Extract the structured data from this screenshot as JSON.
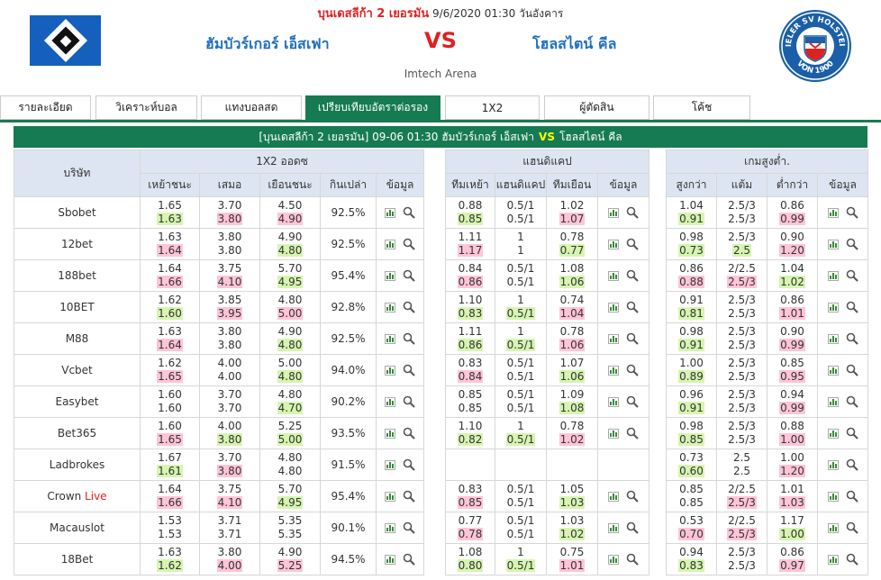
{
  "header": {
    "league": "บุนเดสลีก้า 2 เยอรมัน",
    "datetime": "9/6/2020 01:30",
    "weekday": "วันอังคาร",
    "home_team": "ฮัมบัวร์เกอร์ เอ็สเฟา",
    "vs": "VS",
    "away_team": "โฮลสไตน์ คีล",
    "venue": "Imtech Arena",
    "away_logo_text_top": "KIELER SV HOLSTEIN",
    "away_logo_text_bottom": "VON 1900"
  },
  "tabs": [
    {
      "label": "รายละเอียด",
      "active": false
    },
    {
      "label": "วิเคราะห์บอล",
      "active": false
    },
    {
      "label": "แทงบอลสด",
      "active": false
    },
    {
      "label": "เปรียบเทียบอัตราต่อรอง",
      "active": true
    },
    {
      "label": "1X2",
      "active": false
    },
    {
      "label": "ผู้ตัดสิน",
      "active": false
    },
    {
      "label": "โค้ช",
      "active": false
    }
  ],
  "title_bar": {
    "prefix": "[บุนเดสลีก้า 2 เยอรมัน]",
    "time": "09-06 01:30",
    "home": "ฮัมบัวร์เกอร์ เอ็สเฟา",
    "vs": "VS",
    "away": "โฮลสไตน์ คีล"
  },
  "colors": {
    "accent_green": "#167b52",
    "highlight_green": "#d6f5b0",
    "highlight_red": "#ffc4d8",
    "header_blue": "#dde5f2",
    "team_blue": "#1f6fbf",
    "vs_red": "#e02020"
  },
  "table_1x2": {
    "company_header": "บริษัท",
    "group_header": "1X2 ออดซ",
    "columns": [
      "เหย้าชนะ",
      "เสมอ",
      "เยือนชนะ",
      "กินเปล่า",
      "ข้อมูล"
    ]
  },
  "table_hdp": {
    "group_header": "แฮนดิแคป",
    "columns": [
      "ทีมเหย้า",
      "แฮนดิแคป",
      "ทีมเยือน",
      "ข้อมูล"
    ]
  },
  "table_ou": {
    "group_header": "เกมสูงต่ำ.",
    "columns": [
      "สูงกว่า",
      "แต้ม",
      "ต่ำกว่า",
      "ข้อมูล"
    ]
  },
  "icons": {
    "chart": "bar-chart-icon",
    "search": "magnifier-icon"
  },
  "rows": [
    {
      "company": "Sbobet",
      "live": "",
      "x12": [
        [
          "1.65",
          "",
          "1.63",
          "g"
        ],
        [
          "3.70",
          "",
          "3.80",
          "r"
        ],
        [
          "4.50",
          "",
          "4.90",
          "r"
        ]
      ],
      "payout": "92.5%",
      "hdp": [
        [
          "0.88",
          "",
          "0.85",
          "g"
        ],
        [
          "0.5/1",
          "",
          "0.5/1",
          ""
        ],
        [
          "1.02",
          "",
          "1.07",
          "r"
        ]
      ],
      "ou": [
        [
          "1.04",
          "",
          "0.91",
          "g"
        ],
        [
          "2.5/3",
          "",
          "2.5/3",
          ""
        ],
        [
          "0.86",
          "",
          "0.99",
          "r"
        ]
      ]
    },
    {
      "company": "12bet",
      "live": "",
      "x12": [
        [
          "1.63",
          "",
          "1.64",
          "r"
        ],
        [
          "3.80",
          "",
          "3.80",
          ""
        ],
        [
          "4.90",
          "",
          "4.80",
          "g"
        ]
      ],
      "payout": "92.5%",
      "hdp": [
        [
          "1.11",
          "",
          "1.17",
          "r"
        ],
        [
          "1",
          "",
          "1",
          ""
        ],
        [
          "0.78",
          "",
          "0.77",
          "g"
        ]
      ],
      "ou": [
        [
          "0.98",
          "",
          "0.73",
          "g"
        ],
        [
          "2.5/3",
          "",
          "2.5",
          "g"
        ],
        [
          "0.90",
          "",
          "1.20",
          "r"
        ]
      ]
    },
    {
      "company": "188bet",
      "live": "",
      "x12": [
        [
          "1.64",
          "",
          "1.66",
          "r"
        ],
        [
          "3.75",
          "",
          "4.10",
          "r"
        ],
        [
          "5.70",
          "",
          "4.95",
          "g"
        ]
      ],
      "payout": "95.4%",
      "hdp": [
        [
          "0.84",
          "",
          "0.86",
          "r"
        ],
        [
          "0.5/1",
          "",
          "0.5/1",
          ""
        ],
        [
          "1.08",
          "",
          "1.06",
          "g"
        ]
      ],
      "ou": [
        [
          "0.86",
          "",
          "0.88",
          "r"
        ],
        [
          "2/2.5",
          "",
          "2.5/3",
          "r"
        ],
        [
          "1.04",
          "",
          "1.02",
          "g"
        ]
      ]
    },
    {
      "company": "10BET",
      "live": "",
      "x12": [
        [
          "1.62",
          "",
          "1.60",
          "g"
        ],
        [
          "3.85",
          "",
          "3.95",
          "r"
        ],
        [
          "4.80",
          "",
          "5.00",
          "r"
        ]
      ],
      "payout": "92.8%",
      "hdp": [
        [
          "1.10",
          "",
          "0.83",
          "g"
        ],
        [
          "1",
          "",
          "0.5/1",
          "g"
        ],
        [
          "0.74",
          "",
          "1.04",
          "r"
        ]
      ],
      "ou": [
        [
          "0.91",
          "",
          "0.81",
          "g"
        ],
        [
          "2.5/3",
          "",
          "2.5/3",
          ""
        ],
        [
          "0.86",
          "",
          "1.01",
          "r"
        ]
      ]
    },
    {
      "company": "M88",
      "live": "",
      "x12": [
        [
          "1.63",
          "",
          "1.64",
          "r"
        ],
        [
          "3.80",
          "",
          "3.80",
          ""
        ],
        [
          "4.90",
          "",
          "4.80",
          "g"
        ]
      ],
      "payout": "92.5%",
      "hdp": [
        [
          "1.11",
          "",
          "0.86",
          "g"
        ],
        [
          "1",
          "",
          "0.5/1",
          "g"
        ],
        [
          "0.78",
          "",
          "1.06",
          "r"
        ]
      ],
      "ou": [
        [
          "0.98",
          "",
          "0.91",
          "g"
        ],
        [
          "2.5/3",
          "",
          "2.5/3",
          ""
        ],
        [
          "0.90",
          "",
          "0.99",
          "r"
        ]
      ]
    },
    {
      "company": "Vcbet",
      "live": "",
      "x12": [
        [
          "1.62",
          "",
          "1.65",
          "r"
        ],
        [
          "4.00",
          "",
          "4.00",
          ""
        ],
        [
          "5.00",
          "",
          "4.80",
          "g"
        ]
      ],
      "payout": "94.0%",
      "hdp": [
        [
          "0.83",
          "",
          "0.84",
          "r"
        ],
        [
          "0.5/1",
          "",
          "0.5/1",
          ""
        ],
        [
          "1.07",
          "",
          "1.06",
          "g"
        ]
      ],
      "ou": [
        [
          "1.00",
          "",
          "0.89",
          "g"
        ],
        [
          "2.5/3",
          "",
          "2.5/3",
          ""
        ],
        [
          "0.85",
          "",
          "0.95",
          "r"
        ]
      ]
    },
    {
      "company": "Easybet",
      "live": "",
      "x12": [
        [
          "1.60",
          "",
          "1.60",
          ""
        ],
        [
          "3.70",
          "",
          "3.70",
          ""
        ],
        [
          "4.80",
          "",
          "4.70",
          "g"
        ]
      ],
      "payout": "90.2%",
      "hdp": [
        [
          "0.85",
          "",
          "0.85",
          ""
        ],
        [
          "0.5/1",
          "",
          "0.5/1",
          ""
        ],
        [
          "1.09",
          "",
          "1.08",
          "g"
        ]
      ],
      "ou": [
        [
          "0.96",
          "",
          "0.91",
          "g"
        ],
        [
          "2.5/3",
          "",
          "2.5/3",
          ""
        ],
        [
          "0.94",
          "",
          "0.99",
          "r"
        ]
      ]
    },
    {
      "company": "Bet365",
      "live": "",
      "x12": [
        [
          "1.60",
          "",
          "1.65",
          "r"
        ],
        [
          "4.00",
          "",
          "3.80",
          "g"
        ],
        [
          "5.25",
          "",
          "5.00",
          "g"
        ]
      ],
      "payout": "93.5%",
      "hdp": [
        [
          "1.10",
          "",
          "0.82",
          "g"
        ],
        [
          "1",
          "",
          "0.5/1",
          "g"
        ],
        [
          "0.78",
          "",
          "1.02",
          "r"
        ]
      ],
      "ou": [
        [
          "0.98",
          "",
          "0.85",
          "g"
        ],
        [
          "2.5/3",
          "",
          "2.5/3",
          ""
        ],
        [
          "0.88",
          "",
          "1.00",
          "r"
        ]
      ]
    },
    {
      "company": "Ladbrokes",
      "live": "",
      "x12": [
        [
          "1.67",
          "",
          "1.61",
          "g"
        ],
        [
          "3.70",
          "",
          "3.80",
          "r"
        ],
        [
          "4.80",
          "",
          "4.80",
          ""
        ]
      ],
      "payout": "91.5%",
      "hdp": [
        [
          "",
          "",
          "",
          ""
        ],
        [
          "",
          "",
          "",
          ""
        ],
        [
          "",
          "",
          "",
          ""
        ]
      ],
      "ou": [
        [
          "0.73",
          "",
          "0.60",
          "g"
        ],
        [
          "2.5",
          "",
          "2.5",
          ""
        ],
        [
          "1.00",
          "",
          "1.20",
          "r"
        ]
      ]
    },
    {
      "company": "Crown ",
      "live": "Live",
      "x12": [
        [
          "1.64",
          "",
          "1.66",
          "r"
        ],
        [
          "3.75",
          "",
          "4.10",
          "r"
        ],
        [
          "5.70",
          "",
          "4.95",
          "g"
        ]
      ],
      "payout": "95.4%",
      "hdp": [
        [
          "0.83",
          "",
          "0.85",
          "r"
        ],
        [
          "0.5/1",
          "",
          "0.5/1",
          ""
        ],
        [
          "1.05",
          "",
          "1.03",
          "g"
        ]
      ],
      "ou": [
        [
          "0.85",
          "",
          "0.85",
          ""
        ],
        [
          "2/2.5",
          "",
          "2.5/3",
          "r"
        ],
        [
          "1.01",
          "",
          "1.03",
          "r"
        ]
      ]
    },
    {
      "company": "Macauslot",
      "live": "",
      "x12": [
        [
          "1.53",
          "",
          "1.53",
          ""
        ],
        [
          "3.71",
          "",
          "3.71",
          ""
        ],
        [
          "5.35",
          "",
          "5.35",
          ""
        ]
      ],
      "payout": "90.1%",
      "hdp": [
        [
          "0.77",
          "",
          "0.78",
          "r"
        ],
        [
          "0.5/1",
          "",
          "0.5/1",
          ""
        ],
        [
          "1.03",
          "",
          "1.02",
          "g"
        ]
      ],
      "ou": [
        [
          "0.53",
          "",
          "0.70",
          "r"
        ],
        [
          "2/2.5",
          "",
          "2.5/3",
          "r"
        ],
        [
          "1.17",
          "",
          "1.00",
          "g"
        ]
      ]
    },
    {
      "company": "18Bet",
      "live": "",
      "x12": [
        [
          "1.63",
          "",
          "1.62",
          "g"
        ],
        [
          "3.80",
          "",
          "4.00",
          "r"
        ],
        [
          "4.90",
          "",
          "5.25",
          "r"
        ]
      ],
      "payout": "94.5%",
      "hdp": [
        [
          "1.08",
          "",
          "0.80",
          "g"
        ],
        [
          "1",
          "",
          "0.5/1",
          "g"
        ],
        [
          "0.75",
          "",
          "1.01",
          "r"
        ]
      ],
      "ou": [
        [
          "0.94",
          "",
          "0.83",
          "g"
        ],
        [
          "2.5/3",
          "",
          "2.5/3",
          ""
        ],
        [
          "0.86",
          "",
          "0.97",
          "r"
        ]
      ]
    }
  ]
}
